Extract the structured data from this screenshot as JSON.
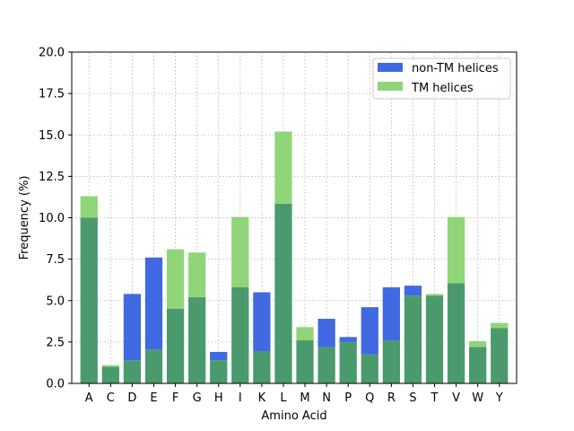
{
  "chart_data": {
    "type": "bar",
    "title": "",
    "xlabel": "Amino Acid",
    "ylabel": "Frequency (%)",
    "ylim": [
      0,
      20
    ],
    "yticks": [
      "0.0",
      "2.5",
      "5.0",
      "7.5",
      "10.0",
      "12.5",
      "15.0",
      "17.5",
      "20.0"
    ],
    "grid": true,
    "legend_position": "top-right",
    "overlap_color": "#4a9a6e",
    "categories": [
      "A",
      "C",
      "D",
      "E",
      "F",
      "G",
      "H",
      "I",
      "K",
      "L",
      "M",
      "N",
      "P",
      "Q",
      "R",
      "S",
      "T",
      "V",
      "W",
      "Y"
    ],
    "series": [
      {
        "name": "non-TM helices",
        "color": "#4169e1",
        "values": [
          10.0,
          1.0,
          5.4,
          7.6,
          4.5,
          5.2,
          1.9,
          5.8,
          5.5,
          10.85,
          2.6,
          3.9,
          2.8,
          4.6,
          5.8,
          5.9,
          5.3,
          6.05,
          2.2,
          3.35
        ]
      },
      {
        "name": "TM helices",
        "color": "#90d679",
        "values": [
          11.3,
          1.1,
          1.4,
          2.05,
          8.1,
          7.9,
          1.4,
          10.05,
          1.95,
          15.2,
          3.4,
          2.2,
          2.5,
          1.75,
          2.6,
          5.3,
          5.4,
          10.05,
          2.55,
          3.65
        ]
      }
    ]
  }
}
